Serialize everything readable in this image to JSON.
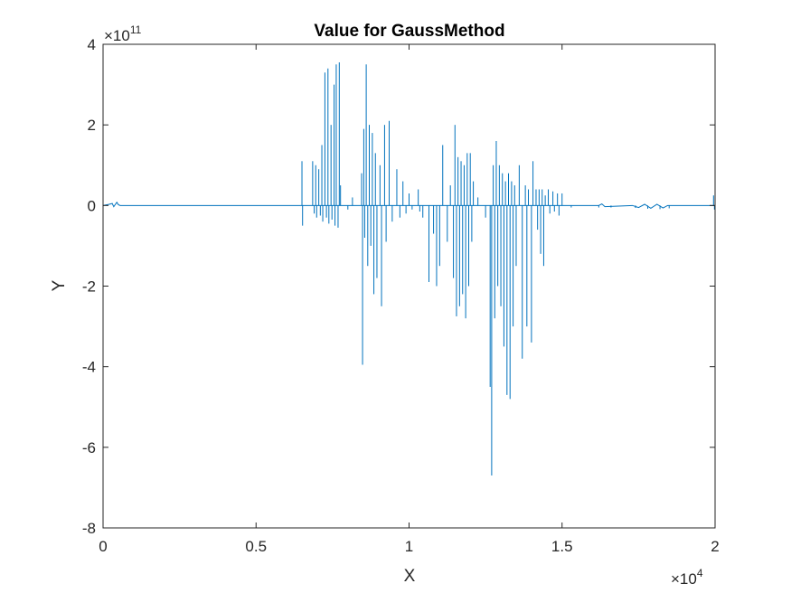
{
  "chart_data": {
    "type": "line",
    "title": "Value for GaussMethod",
    "xlabel": "X",
    "ylabel": "Y",
    "xlim": [
      0,
      20000
    ],
    "ylim": [
      -800000000000,
      400000000000
    ],
    "x_ticks": [
      0,
      5000,
      10000,
      15000,
      20000
    ],
    "x_tick_labels": [
      "0",
      "0.5",
      "1",
      "1.5",
      "2"
    ],
    "y_ticks": [
      -800000000000,
      -600000000000,
      -400000000000,
      -200000000000,
      0,
      200000000000,
      400000000000
    ],
    "y_tick_labels": [
      "-8",
      "-6",
      "-4",
      "-2",
      "0",
      "2",
      "4"
    ],
    "x_exponent": {
      "base": "×10",
      "power": "4"
    },
    "y_exponent": {
      "base": "×10",
      "power": "11"
    },
    "grid": false,
    "line_color": "#0072BD",
    "axis_color": "#262626",
    "spikes": [
      {
        "x": 6500,
        "y": 110000000000
      },
      {
        "x": 6520,
        "y": -50000000000
      },
      {
        "x": 6850,
        "y": 110000000000
      },
      {
        "x": 6900,
        "y": -20000000000
      },
      {
        "x": 6950,
        "y": 100000000000
      },
      {
        "x": 6980,
        "y": -30000000000
      },
      {
        "x": 7050,
        "y": 90000000000
      },
      {
        "x": 7100,
        "y": -25000000000
      },
      {
        "x": 7150,
        "y": 150000000000
      },
      {
        "x": 7180,
        "y": -40000000000
      },
      {
        "x": 7250,
        "y": 330000000000
      },
      {
        "x": 7300,
        "y": -30000000000
      },
      {
        "x": 7350,
        "y": 340000000000
      },
      {
        "x": 7380,
        "y": -45000000000
      },
      {
        "x": 7450,
        "y": 200000000000
      },
      {
        "x": 7480,
        "y": -35000000000
      },
      {
        "x": 7550,
        "y": 300000000000
      },
      {
        "x": 7580,
        "y": -50000000000
      },
      {
        "x": 7620,
        "y": 350000000000
      },
      {
        "x": 7680,
        "y": -55000000000
      },
      {
        "x": 7720,
        "y": 355000000000
      },
      {
        "x": 7760,
        "y": 50000000000
      },
      {
        "x": 8000,
        "y": -10000000000
      },
      {
        "x": 8150,
        "y": 20000000000
      },
      {
        "x": 8450,
        "y": 80000000000
      },
      {
        "x": 8480,
        "y": -395000000000
      },
      {
        "x": 8520,
        "y": 190000000000
      },
      {
        "x": 8550,
        "y": -80000000000
      },
      {
        "x": 8600,
        "y": 350000000000
      },
      {
        "x": 8650,
        "y": -150000000000
      },
      {
        "x": 8700,
        "y": 200000000000
      },
      {
        "x": 8750,
        "y": -100000000000
      },
      {
        "x": 8800,
        "y": 180000000000
      },
      {
        "x": 8850,
        "y": -220000000000
      },
      {
        "x": 8900,
        "y": 130000000000
      },
      {
        "x": 8950,
        "y": -180000000000
      },
      {
        "x": 9050,
        "y": 100000000000
      },
      {
        "x": 9100,
        "y": -250000000000
      },
      {
        "x": 9200,
        "y": 200000000000
      },
      {
        "x": 9250,
        "y": -90000000000
      },
      {
        "x": 9350,
        "y": 210000000000
      },
      {
        "x": 9450,
        "y": -40000000000
      },
      {
        "x": 9600,
        "y": 90000000000
      },
      {
        "x": 9700,
        "y": -30000000000
      },
      {
        "x": 9800,
        "y": 60000000000
      },
      {
        "x": 9900,
        "y": -20000000000
      },
      {
        "x": 10000,
        "y": 30000000000
      },
      {
        "x": 10100,
        "y": -10000000000
      },
      {
        "x": 10300,
        "y": 40000000000
      },
      {
        "x": 10350,
        "y": -15000000000
      },
      {
        "x": 10450,
        "y": -30000000000
      },
      {
        "x": 10650,
        "y": -190000000000
      },
      {
        "x": 10800,
        "y": -70000000000
      },
      {
        "x": 10900,
        "y": -200000000000
      },
      {
        "x": 11000,
        "y": -150000000000
      },
      {
        "x": 11100,
        "y": 150000000000
      },
      {
        "x": 11250,
        "y": -90000000000
      },
      {
        "x": 11350,
        "y": 50000000000
      },
      {
        "x": 11450,
        "y": -180000000000
      },
      {
        "x": 11500,
        "y": 200000000000
      },
      {
        "x": 11550,
        "y": -275000000000
      },
      {
        "x": 11600,
        "y": 120000000000
      },
      {
        "x": 11650,
        "y": -250000000000
      },
      {
        "x": 11700,
        "y": 110000000000
      },
      {
        "x": 11750,
        "y": -220000000000
      },
      {
        "x": 11800,
        "y": 100000000000
      },
      {
        "x": 11850,
        "y": -280000000000
      },
      {
        "x": 11900,
        "y": 130000000000
      },
      {
        "x": 11950,
        "y": -200000000000
      },
      {
        "x": 12000,
        "y": 130000000000
      },
      {
        "x": 12050,
        "y": -90000000000
      },
      {
        "x": 12100,
        "y": 60000000000
      },
      {
        "x": 12250,
        "y": 20000000000
      },
      {
        "x": 12500,
        "y": -30000000000
      },
      {
        "x": 12650,
        "y": -450000000000
      },
      {
        "x": 12700,
        "y": -670000000000
      },
      {
        "x": 12750,
        "y": 100000000000
      },
      {
        "x": 12800,
        "y": -280000000000
      },
      {
        "x": 12850,
        "y": 160000000000
      },
      {
        "x": 12900,
        "y": -200000000000
      },
      {
        "x": 12950,
        "y": 100000000000
      },
      {
        "x": 13000,
        "y": -250000000000
      },
      {
        "x": 13050,
        "y": 80000000000
      },
      {
        "x": 13100,
        "y": -350000000000
      },
      {
        "x": 13150,
        "y": 60000000000
      },
      {
        "x": 13200,
        "y": -470000000000
      },
      {
        "x": 13250,
        "y": 80000000000
      },
      {
        "x": 13300,
        "y": -480000000000
      },
      {
        "x": 13350,
        "y": 60000000000
      },
      {
        "x": 13400,
        "y": -300000000000
      },
      {
        "x": 13450,
        "y": 50000000000
      },
      {
        "x": 13500,
        "y": -150000000000
      },
      {
        "x": 13600,
        "y": 100000000000
      },
      {
        "x": 13700,
        "y": -380000000000
      },
      {
        "x": 13800,
        "y": 50000000000
      },
      {
        "x": 13850,
        "y": -300000000000
      },
      {
        "x": 13900,
        "y": 40000000000
      },
      {
        "x": 14000,
        "y": -340000000000
      },
      {
        "x": 14050,
        "y": 110000000000
      },
      {
        "x": 14150,
        "y": 40000000000
      },
      {
        "x": 14200,
        "y": -60000000000
      },
      {
        "x": 14250,
        "y": 40000000000
      },
      {
        "x": 14300,
        "y": -120000000000
      },
      {
        "x": 14350,
        "y": 40000000000
      },
      {
        "x": 14400,
        "y": -150000000000
      },
      {
        "x": 14450,
        "y": 25000000000
      },
      {
        "x": 14550,
        "y": 40000000000
      },
      {
        "x": 14600,
        "y": -20000000000
      },
      {
        "x": 14700,
        "y": 35000000000
      },
      {
        "x": 14750,
        "y": -15000000000
      },
      {
        "x": 14850,
        "y": 30000000000
      },
      {
        "x": 14900,
        "y": -25000000000
      },
      {
        "x": 15000,
        "y": 30000000000
      },
      {
        "x": 15300,
        "y": -5000000000
      },
      {
        "x": 16200,
        "y": -5000000000
      },
      {
        "x": 16600,
        "y": -5000000000
      },
      {
        "x": 17400,
        "y": -6000000000
      },
      {
        "x": 17800,
        "y": -8000000000
      },
      {
        "x": 18200,
        "y": -9000000000
      },
      {
        "x": 18500,
        "y": -7000000000
      },
      {
        "x": 19950,
        "y": 25000000000
      },
      {
        "x": 19980,
        "y": -10000000000
      }
    ],
    "baseline_noise": [
      {
        "x": 0,
        "y": 0
      },
      {
        "x": 200,
        "y": 3000000000
      },
      {
        "x": 300,
        "y": 5000000000
      },
      {
        "x": 350,
        "y": -3000000000
      },
      {
        "x": 450,
        "y": 8000000000
      },
      {
        "x": 500,
        "y": 2000000000
      },
      {
        "x": 560,
        "y": 0
      },
      {
        "x": 16200,
        "y": 0
      },
      {
        "x": 16300,
        "y": 4000000000
      },
      {
        "x": 16400,
        "y": -3000000000
      },
      {
        "x": 17300,
        "y": 0
      },
      {
        "x": 17500,
        "y": -5000000000
      },
      {
        "x": 17700,
        "y": 3000000000
      },
      {
        "x": 17900,
        "y": -7000000000
      },
      {
        "x": 18100,
        "y": 3000000000
      },
      {
        "x": 18300,
        "y": -6000000000
      },
      {
        "x": 18450,
        "y": 0
      },
      {
        "x": 19900,
        "y": 0
      },
      {
        "x": 20000,
        "y": 0
      }
    ]
  }
}
